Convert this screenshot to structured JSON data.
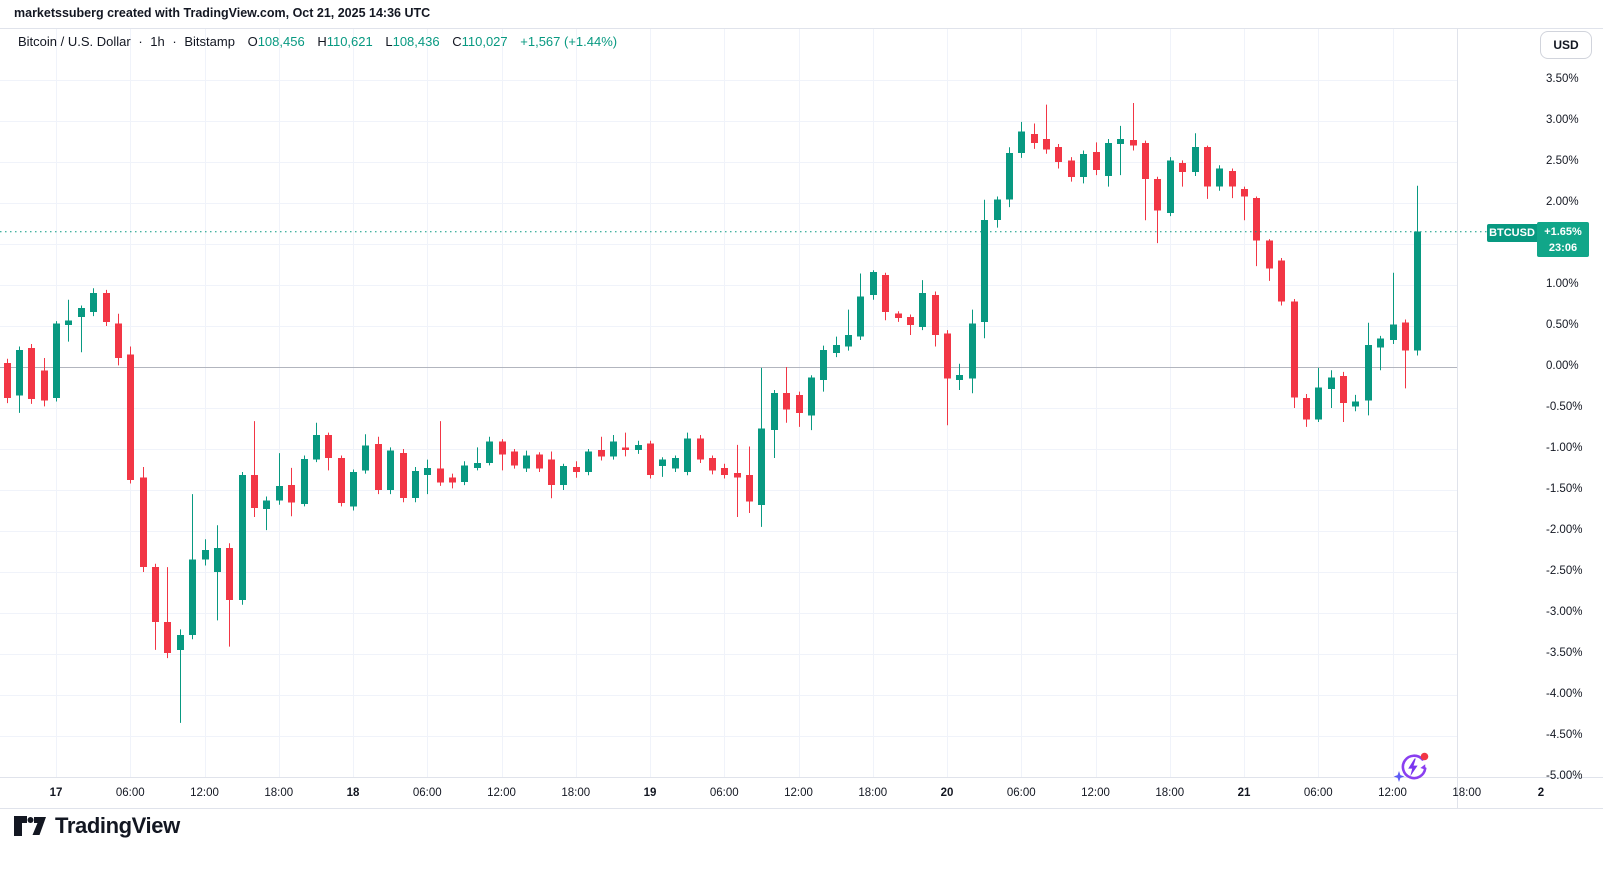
{
  "attribution": "marketssuberg created with TradingView.com, Oct 21, 2025 14:36 UTC",
  "header": {
    "symbol": "Bitcoin / U.S. Dollar",
    "sep1": "·",
    "interval": "1h",
    "sep2": "·",
    "exchange": "Bitstamp",
    "ohlc": [
      {
        "k": "O",
        "v": "108,456"
      },
      {
        "k": "H",
        "v": "110,621"
      },
      {
        "k": "L",
        "v": "108,436"
      },
      {
        "k": "C",
        "v": "110,027"
      }
    ],
    "change": "+1,567 (+1.44%)"
  },
  "price_scale": {
    "currency_button": "USD",
    "tick_labels": [
      "3.50%",
      "3.00%",
      "2.50%",
      "2.00%",
      "1.50%",
      "1.00%",
      "0.50%",
      "0.00%",
      "-0.50%",
      "-1.00%",
      "-1.50%",
      "-2.00%",
      "-2.50%",
      "-3.00%",
      "-3.50%",
      "-4.00%",
      "-4.50%",
      "-5.00%"
    ],
    "tick_values": [
      3.5,
      3.0,
      2.5,
      2.0,
      1.5,
      1.0,
      0.5,
      0.0,
      -0.5,
      -1.0,
      -1.5,
      -2.0,
      -2.5,
      -3.0,
      -3.5,
      -4.0,
      -4.5,
      -5.0
    ],
    "last_label": {
      "symbol": "BTCUSD",
      "change": "+1.65%",
      "countdown": "23:06"
    }
  },
  "icons": {
    "boost": "lightning-refresh-circle-icon with red notification dot and sparkle",
    "logo": "tradingview-mark"
  },
  "footer": {
    "logo_text": "TradingView"
  },
  "chart_data": {
    "type": "candlestick",
    "title": "Bitcoin / U.S. Dollar, 1h, Bitstamp",
    "unit": "percent change",
    "ylabel": "%",
    "ylim": [
      -5.3,
      3.8
    ],
    "grid": true,
    "zero_line": 0.0,
    "last_price_pct": 1.65,
    "first_candle_offset_hours": -5,
    "interval_hours": 1,
    "start_time": "Oct 16 19:00 UTC",
    "end_time": "Oct 21 14:00 UTC",
    "colors": {
      "up": "#089981",
      "down": "#f23645",
      "last_line": "#089981",
      "zero_line": "#b2b5be",
      "grid": "#f0f3fa"
    },
    "x_ticks": [
      {
        "t": 0,
        "label": "17",
        "day": true
      },
      {
        "t": 6,
        "label": "06:00",
        "day": false
      },
      {
        "t": 12,
        "label": "12:00",
        "day": false
      },
      {
        "t": 18,
        "label": "18:00",
        "day": false
      },
      {
        "t": 24,
        "label": "18",
        "day": true
      },
      {
        "t": 30,
        "label": "06:00",
        "day": false
      },
      {
        "t": 36,
        "label": "12:00",
        "day": false
      },
      {
        "t": 42,
        "label": "18:00",
        "day": false
      },
      {
        "t": 48,
        "label": "19",
        "day": true
      },
      {
        "t": 54,
        "label": "06:00",
        "day": false
      },
      {
        "t": 60,
        "label": "12:00",
        "day": false
      },
      {
        "t": 66,
        "label": "18:00",
        "day": false
      },
      {
        "t": 72,
        "label": "20",
        "day": true
      },
      {
        "t": 78,
        "label": "06:00",
        "day": false
      },
      {
        "t": 84,
        "label": "12:00",
        "day": false
      },
      {
        "t": 90,
        "label": "18:00",
        "day": false
      },
      {
        "t": 96,
        "label": "21",
        "day": true
      },
      {
        "t": 102,
        "label": "06:00",
        "day": false
      },
      {
        "t": 108,
        "label": "12:00",
        "day": false
      },
      {
        "t": 114,
        "label": "18:00",
        "day": false
      },
      {
        "t": 120,
        "label": "2",
        "day": true
      }
    ],
    "candles_ohlc_pct": [
      [
        0.02,
        0.06,
        -0.42,
        -0.38
      ],
      [
        0.05,
        0.1,
        -0.44,
        -0.38
      ],
      [
        -0.35,
        0.25,
        -0.56,
        0.21
      ],
      [
        0.23,
        0.28,
        -0.45,
        -0.39
      ],
      [
        -0.04,
        0.11,
        -0.48,
        -0.41
      ],
      [
        -0.38,
        0.56,
        -0.42,
        0.53
      ],
      [
        0.51,
        0.82,
        0.31,
        0.57
      ],
      [
        0.61,
        0.75,
        0.18,
        0.72
      ],
      [
        0.67,
        0.96,
        0.62,
        0.9
      ],
      [
        0.9,
        0.94,
        0.5,
        0.55
      ],
      [
        0.53,
        0.65,
        0.02,
        0.11
      ],
      [
        0.15,
        0.25,
        -1.42,
        -1.38
      ],
      [
        -1.35,
        -1.22,
        -2.5,
        -2.44
      ],
      [
        -2.44,
        -2.4,
        -3.45,
        -3.11
      ],
      [
        -3.11,
        -2.44,
        -3.55,
        -3.49
      ],
      [
        -3.45,
        -3.2,
        -4.34,
        -3.27
      ],
      [
        -3.27,
        -1.55,
        -3.32,
        -2.35
      ],
      [
        -2.35,
        -2.1,
        -2.42,
        -2.23
      ],
      [
        -2.5,
        -1.93,
        -3.09,
        -2.21
      ],
      [
        -2.21,
        -2.15,
        -3.41,
        -2.84
      ],
      [
        -2.84,
        -1.28,
        -2.9,
        -1.32
      ],
      [
        -1.32,
        -0.66,
        -1.83,
        -1.72
      ],
      [
        -1.73,
        -1.58,
        -1.99,
        -1.63
      ],
      [
        -1.63,
        -1.05,
        -1.68,
        -1.45
      ],
      [
        -1.44,
        -1.23,
        -1.82,
        -1.65
      ],
      [
        -1.67,
        -1.08,
        -1.7,
        -1.12
      ],
      [
        -1.13,
        -0.68,
        -1.16,
        -0.83
      ],
      [
        -0.83,
        -0.8,
        -1.26,
        -1.11
      ],
      [
        -1.11,
        -1.08,
        -1.7,
        -1.66
      ],
      [
        -1.7,
        -1.25,
        -1.75,
        -1.28
      ],
      [
        -1.26,
        -0.82,
        -1.3,
        -0.96
      ],
      [
        -0.94,
        -0.85,
        -1.55,
        -1.5
      ],
      [
        -1.5,
        -0.98,
        -1.55,
        -1.02
      ],
      [
        -1.05,
        -1.0,
        -1.65,
        -1.6
      ],
      [
        -1.6,
        -1.22,
        -1.65,
        -1.27
      ],
      [
        -1.32,
        -1.13,
        -1.55,
        -1.23
      ],
      [
        -1.24,
        -0.66,
        -1.45,
        -1.41
      ],
      [
        -1.35,
        -1.3,
        -1.48,
        -1.41
      ],
      [
        -1.4,
        -1.15,
        -1.44,
        -1.2
      ],
      [
        -1.23,
        -0.98,
        -1.26,
        -1.17
      ],
      [
        -1.17,
        -0.85,
        -1.2,
        -0.91
      ],
      [
        -0.91,
        -0.88,
        -1.26,
        -1.07
      ],
      [
        -1.03,
        -1.0,
        -1.24,
        -1.2
      ],
      [
        -1.24,
        -1.02,
        -1.28,
        -1.08
      ],
      [
        -1.07,
        -1.04,
        -1.28,
        -1.24
      ],
      [
        -1.13,
        -1.03,
        -1.6,
        -1.44
      ],
      [
        -1.44,
        -1.18,
        -1.5,
        -1.21
      ],
      [
        -1.22,
        -1.15,
        -1.35,
        -1.28
      ],
      [
        -1.28,
        -1.0,
        -1.32,
        -1.03
      ],
      [
        -1.01,
        -0.85,
        -1.14,
        -1.09
      ],
      [
        -1.09,
        -0.83,
        -1.13,
        -0.91
      ],
      [
        -0.98,
        -0.8,
        -1.09,
        -1.01
      ],
      [
        -1.01,
        -0.9,
        -1.06,
        -0.95
      ],
      [
        -0.93,
        -0.9,
        -1.36,
        -1.32
      ],
      [
        -1.21,
        -1.1,
        -1.34,
        -1.13
      ],
      [
        -1.24,
        -1.08,
        -1.28,
        -1.11
      ],
      [
        -1.28,
        -0.8,
        -1.32,
        -0.87
      ],
      [
        -0.87,
        -0.83,
        -1.17,
        -1.13
      ],
      [
        -1.11,
        -1.08,
        -1.31,
        -1.26
      ],
      [
        -1.23,
        -1.18,
        -1.36,
        -1.32
      ],
      [
        -1.29,
        -0.95,
        -1.83,
        -1.35
      ],
      [
        -1.32,
        -0.97,
        -1.78,
        -1.64
      ],
      [
        -1.68,
        -0.01,
        -1.95,
        -0.75
      ],
      [
        -0.77,
        -0.28,
        -1.11,
        -0.32
      ],
      [
        -0.32,
        0.0,
        -0.68,
        -0.52
      ],
      [
        -0.34,
        -0.3,
        -0.73,
        -0.56
      ],
      [
        -0.59,
        -0.1,
        -0.77,
        -0.13
      ],
      [
        -0.16,
        0.26,
        -0.3,
        0.21
      ],
      [
        0.17,
        0.37,
        0.12,
        0.27
      ],
      [
        0.25,
        0.7,
        0.2,
        0.39
      ],
      [
        0.37,
        1.14,
        0.33,
        0.86
      ],
      [
        0.88,
        1.18,
        0.82,
        1.16
      ],
      [
        1.12,
        1.15,
        0.57,
        0.67
      ],
      [
        0.65,
        0.68,
        0.55,
        0.6
      ],
      [
        0.61,
        0.64,
        0.39,
        0.51
      ],
      [
        0.49,
        1.06,
        0.45,
        0.9
      ],
      [
        0.88,
        0.92,
        0.25,
        0.39
      ],
      [
        0.41,
        0.45,
        -0.71,
        -0.14
      ],
      [
        -0.16,
        0.04,
        -0.28,
        -0.1
      ],
      [
        -0.14,
        0.7,
        -0.32,
        0.53
      ],
      [
        0.55,
        2.04,
        0.35,
        1.79
      ],
      [
        1.79,
        2.08,
        1.7,
        2.04
      ],
      [
        2.04,
        2.68,
        1.95,
        2.61
      ],
      [
        2.61,
        2.99,
        2.55,
        2.87
      ],
      [
        2.84,
        2.97,
        2.66,
        2.73
      ],
      [
        2.78,
        3.2,
        2.6,
        2.65
      ],
      [
        2.68,
        2.72,
        2.42,
        2.5
      ],
      [
        2.52,
        2.56,
        2.26,
        2.32
      ],
      [
        2.32,
        2.64,
        2.24,
        2.6
      ],
      [
        2.62,
        2.74,
        2.34,
        2.4
      ],
      [
        2.33,
        2.78,
        2.2,
        2.73
      ],
      [
        2.72,
        2.94,
        2.34,
        2.78
      ],
      [
        2.77,
        3.22,
        2.64,
        2.7
      ],
      [
        2.73,
        2.76,
        1.79,
        2.29
      ],
      [
        2.29,
        2.32,
        1.51,
        1.91
      ],
      [
        1.88,
        2.56,
        1.84,
        2.52
      ],
      [
        2.49,
        2.52,
        2.2,
        2.38
      ],
      [
        2.38,
        2.85,
        2.33,
        2.68
      ],
      [
        2.68,
        2.7,
        2.05,
        2.2
      ],
      [
        2.2,
        2.46,
        2.15,
        2.42
      ],
      [
        2.39,
        2.42,
        2.06,
        2.2
      ],
      [
        2.17,
        2.2,
        1.79,
        2.08
      ],
      [
        2.06,
        2.08,
        1.23,
        1.54
      ],
      [
        1.54,
        1.56,
        1.05,
        1.2
      ],
      [
        1.3,
        1.33,
        0.75,
        0.8
      ],
      [
        0.8,
        0.83,
        -0.5,
        -0.37
      ],
      [
        -0.38,
        -0.33,
        -0.73,
        -0.64
      ],
      [
        -0.64,
        -0.01,
        -0.67,
        -0.25
      ],
      [
        -0.27,
        -0.04,
        -0.5,
        -0.13
      ],
      [
        -0.11,
        -0.06,
        -0.67,
        -0.44
      ],
      [
        -0.48,
        -0.34,
        -0.54,
        -0.42
      ],
      [
        -0.41,
        0.54,
        -0.59,
        0.27
      ],
      [
        0.24,
        0.38,
        -0.04,
        0.35
      ],
      [
        0.33,
        1.15,
        0.28,
        0.52
      ],
      [
        0.54,
        0.58,
        -0.26,
        0.2
      ],
      [
        0.2,
        2.21,
        0.14,
        1.65
      ]
    ]
  }
}
